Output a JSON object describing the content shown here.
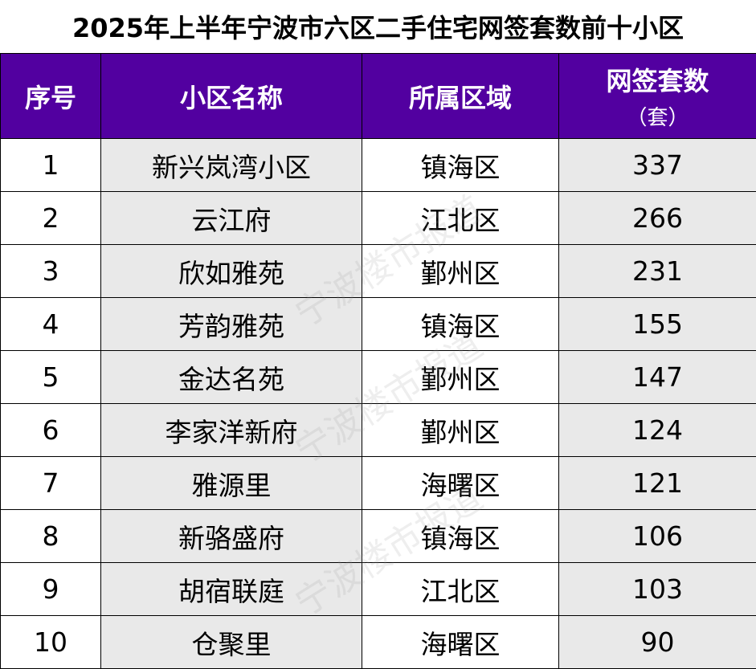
{
  "title": "2025年上半年宁波市六区二手住宅网签套数前十小区",
  "colors": {
    "header_bg": "#5200a0",
    "header_text": "#ffffff",
    "stripe_bg": "#e9e9e9"
  },
  "table": {
    "headers": {
      "rank": "序号",
      "name": "小区名称",
      "district": "所属区域",
      "count": "网签套数",
      "count_unit": "（套）"
    },
    "rows": [
      {
        "rank": "1",
        "name": "新兴岚湾小区",
        "district": "镇海区",
        "count": "337"
      },
      {
        "rank": "2",
        "name": "云江府",
        "district": "江北区",
        "count": "266"
      },
      {
        "rank": "3",
        "name": "欣如雅苑",
        "district": "鄞州区",
        "count": "231"
      },
      {
        "rank": "4",
        "name": "芳韵雅苑",
        "district": "镇海区",
        "count": "155"
      },
      {
        "rank": "5",
        "name": "金达名苑",
        "district": "鄞州区",
        "count": "147"
      },
      {
        "rank": "6",
        "name": "李家洋新府",
        "district": "鄞州区",
        "count": "124"
      },
      {
        "rank": "7",
        "name": "雅源里",
        "district": "海曙区",
        "count": "121"
      },
      {
        "rank": "8",
        "name": "新骆盛府",
        "district": "镇海区",
        "count": "106"
      },
      {
        "rank": "9",
        "name": "胡宿联庭",
        "district": "江北区",
        "count": "103"
      },
      {
        "rank": "10",
        "name": "仓聚里",
        "district": "海曙区",
        "count": "90"
      }
    ]
  },
  "watermark": "宁波楼市报道"
}
